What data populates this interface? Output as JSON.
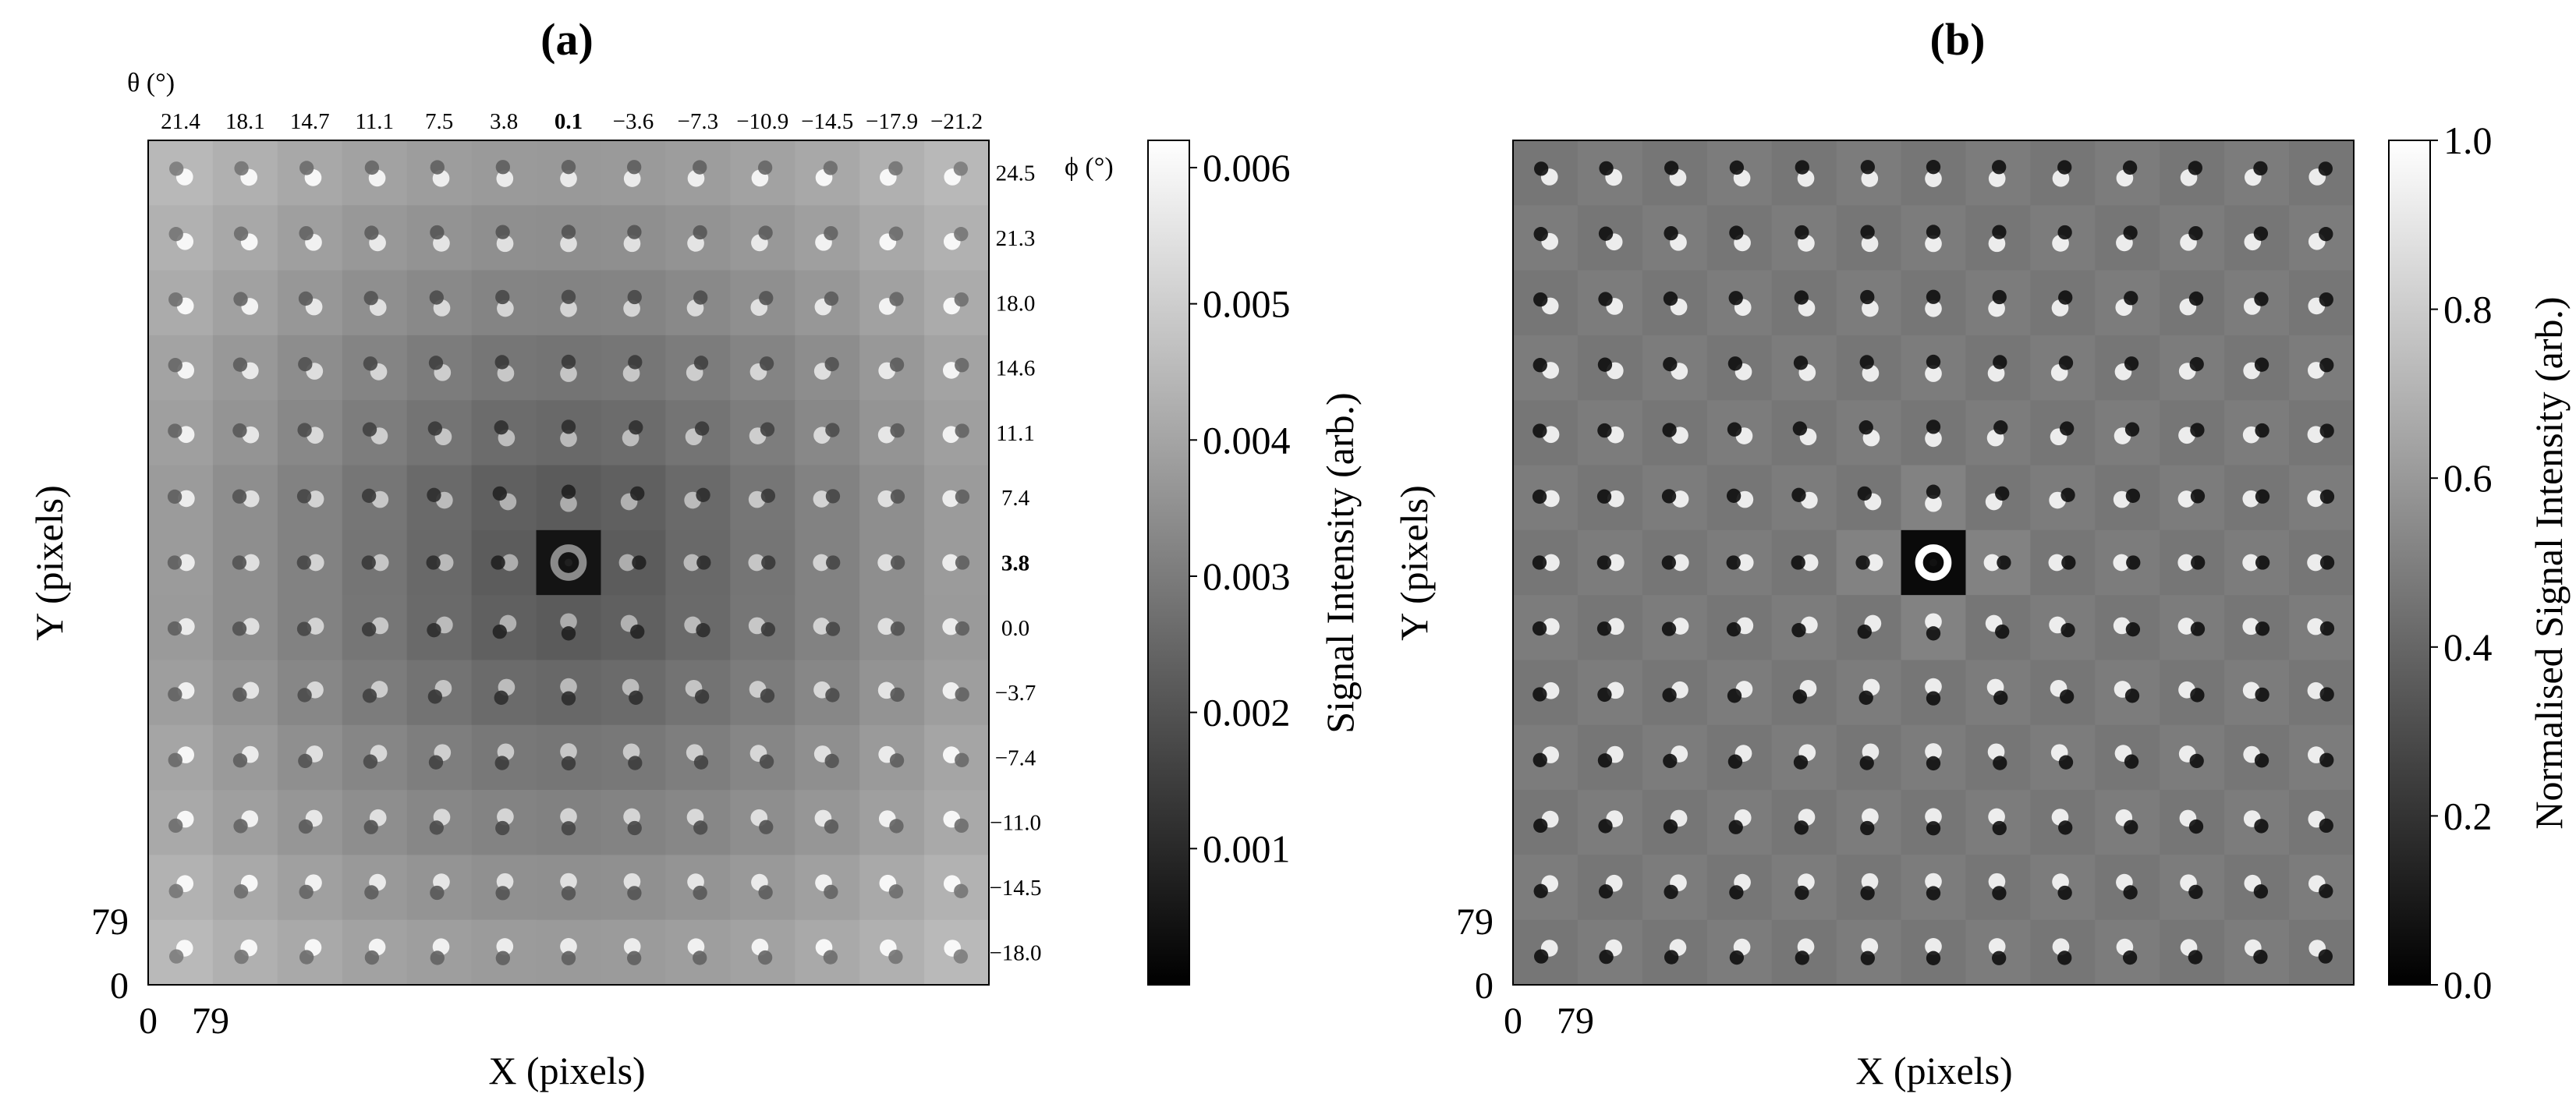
{
  "chart_data": [
    {
      "type": "heatmap",
      "title": "(a)",
      "xlabel": "X (pixels)",
      "ylabel": "Y (pixels)",
      "x_ticks": [
        "0",
        "79"
      ],
      "y_ticks": [
        "0",
        "79"
      ],
      "grid": {
        "rows": 13,
        "cols": 13
      },
      "theta_label": "θ (°)",
      "theta_ticks": [
        "21.4",
        "18.1",
        "14.7",
        "11.1",
        "7.5",
        "3.8",
        "0.1",
        "−3.6",
        "−7.3",
        "−10.9",
        "−14.5",
        "−17.9",
        "−21.2"
      ],
      "theta_bold": "0.1",
      "phi_label": "ϕ (°)",
      "phi_ticks": [
        "24.5",
        "21.3",
        "18.0",
        "14.6",
        "11.1",
        "7.4",
        "3.8",
        "0.0",
        "−3.7",
        "−7.4",
        "−11.0",
        "−14.5",
        "−18.0"
      ],
      "phi_bold": "3.8",
      "center_cell": [
        6,
        6
      ],
      "colorbar": {
        "label": "Signal Intensity (arb.)",
        "min": 0.0,
        "max": 0.0062,
        "ticks": [
          "0.001",
          "0.002",
          "0.003",
          "0.004",
          "0.005",
          "0.006"
        ],
        "tick_values": [
          0.001,
          0.002,
          0.003,
          0.004,
          0.005,
          0.006
        ],
        "colormap": "gray"
      }
    },
    {
      "type": "heatmap",
      "title": "(b)",
      "xlabel": "X (pixels)",
      "ylabel": "Y (pixels)",
      "x_ticks": [
        "0",
        "79"
      ],
      "y_ticks": [
        "0",
        "79"
      ],
      "grid": {
        "rows": 13,
        "cols": 13
      },
      "center_cell": [
        6,
        6
      ],
      "colorbar": {
        "label": "Normalised Signal Intensity (arb.)",
        "min": 0.0,
        "max": 1.0,
        "ticks": [
          "0.0",
          "0.2",
          "0.4",
          "0.6",
          "0.8",
          "1.0"
        ],
        "tick_values": [
          0.0,
          0.2,
          0.4,
          0.6,
          0.8,
          1.0
        ],
        "colormap": "gray"
      }
    }
  ]
}
